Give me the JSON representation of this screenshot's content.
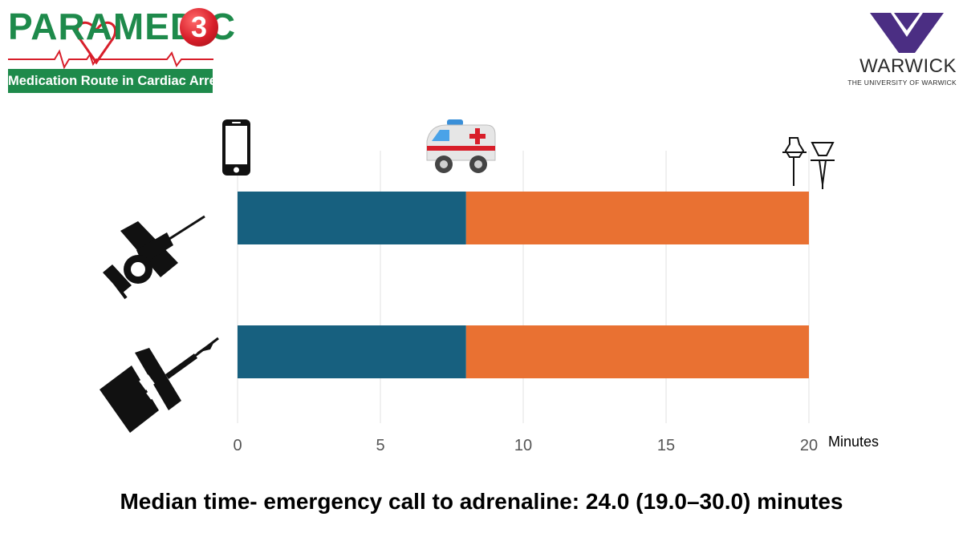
{
  "header": {
    "logo_left_word": "PARAMEDIC",
    "logo_left_number": "3",
    "logo_left_subtitle": "Medication Route in Cardiac Arrest",
    "logo_right_word": "WARWICK",
    "logo_right_subtitle": "THE UNIVERSITY OF WARWICK"
  },
  "icons": {
    "top": [
      "phone-icon",
      "ambulance-icon",
      "iv-line-icon"
    ],
    "rows": [
      "intraosseous-needle-icon",
      "iv-cannula-icon"
    ]
  },
  "chart_data": {
    "type": "bar",
    "orientation": "horizontal",
    "stacked": true,
    "categories": [
      "Intraosseous route",
      "Intravenous route"
    ],
    "series": [
      {
        "values": [
          8,
          8
        ],
        "color": "#17607f"
      },
      {
        "values": [
          12,
          12
        ],
        "color": "#e97132"
      }
    ],
    "x_ticks": [
      0,
      5,
      10,
      15,
      20
    ],
    "xlabel": "Minutes",
    "xlim": [
      0,
      20
    ],
    "grid": "vertical",
    "annotation_icons_at": [
      0,
      8,
      20
    ]
  },
  "footer": {
    "summary": "Median time- emergency call to adrenaline: 24.0 (19.0–30.0) minutes"
  },
  "colors": {
    "brand_green": "#1e8a4b",
    "brand_red": "#d81e2a",
    "warwick_purple": "#4b2e83"
  }
}
